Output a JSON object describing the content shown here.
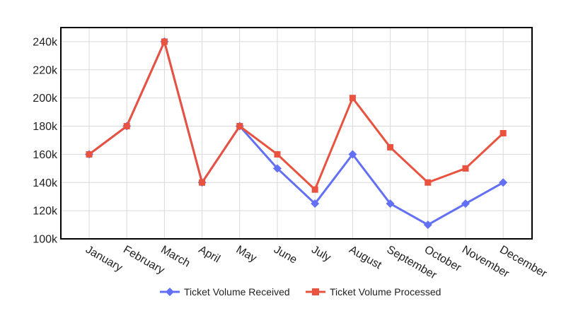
{
  "chart_data": {
    "type": "line",
    "title": "",
    "xlabel": "",
    "ylabel": "",
    "categories": [
      "January",
      "February",
      "March",
      "April",
      "May",
      "June",
      "July",
      "August",
      "September",
      "October",
      "November",
      "December"
    ],
    "ylim": [
      100000,
      250000
    ],
    "yticks": [
      100000,
      120000,
      140000,
      160000,
      180000,
      200000,
      220000,
      240000
    ],
    "ytick_labels": [
      "100k",
      "120k",
      "140k",
      "160k",
      "180k",
      "200k",
      "220k",
      "240k"
    ],
    "grid": true,
    "legend_position": "bottom",
    "series": [
      {
        "name": "Ticket Volume Received",
        "color": "#6370f5",
        "marker": "diamond",
        "values": [
          160000,
          180000,
          240000,
          140000,
          180000,
          150000,
          125000,
          160000,
          125000,
          110000,
          125000,
          140000
        ]
      },
      {
        "name": "Ticket Volume Processed",
        "color": "#e8523f",
        "marker": "square",
        "values": [
          160000,
          180000,
          240000,
          140000,
          180000,
          160000,
          135000,
          200000,
          165000,
          140000,
          150000,
          175000
        ]
      }
    ]
  }
}
